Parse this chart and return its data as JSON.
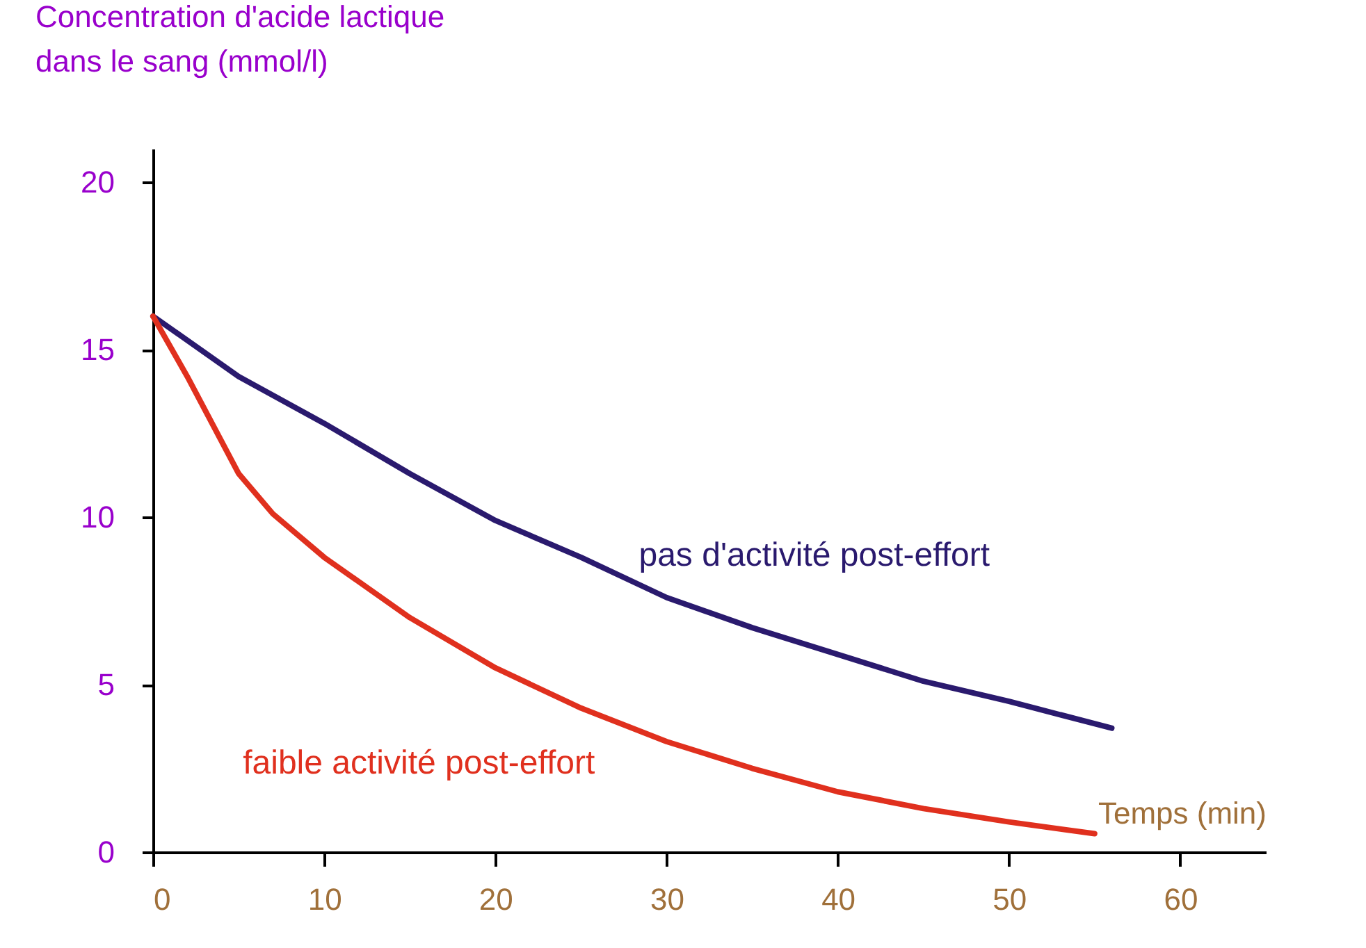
{
  "chart_data": {
    "type": "line",
    "xlabel": "Temps (min)",
    "ylabel": "Concentration d'acide lactique\ndans le sang (mmol/l)",
    "xlim": [
      0,
      65
    ],
    "ylim": [
      0,
      21
    ],
    "xticks": [
      0,
      10,
      20,
      30,
      40,
      50,
      60
    ],
    "yticks": [
      0,
      5,
      10,
      15,
      20
    ],
    "grid": false,
    "legend": false,
    "marker": "none",
    "line_style": "solid",
    "series": [
      {
        "name": "pas d'activité post-effort",
        "color": "#2a1a6e",
        "x": [
          0,
          5,
          10,
          15,
          20,
          25,
          30,
          35,
          40,
          45,
          50,
          56
        ],
        "values": [
          16,
          14.2,
          12.8,
          11.3,
          9.9,
          8.8,
          7.6,
          6.7,
          5.9,
          5.1,
          4.5,
          3.7
        ]
      },
      {
        "name": "faible activité post-effort",
        "color": "#e0301e",
        "x": [
          0,
          2,
          5,
          7,
          10,
          15,
          20,
          25,
          30,
          35,
          40,
          45,
          50,
          55
        ],
        "values": [
          16,
          14.2,
          11.3,
          10.1,
          8.8,
          7.0,
          5.5,
          4.3,
          3.3,
          2.5,
          1.8,
          1.3,
          0.9,
          0.55
        ]
      }
    ]
  }
}
